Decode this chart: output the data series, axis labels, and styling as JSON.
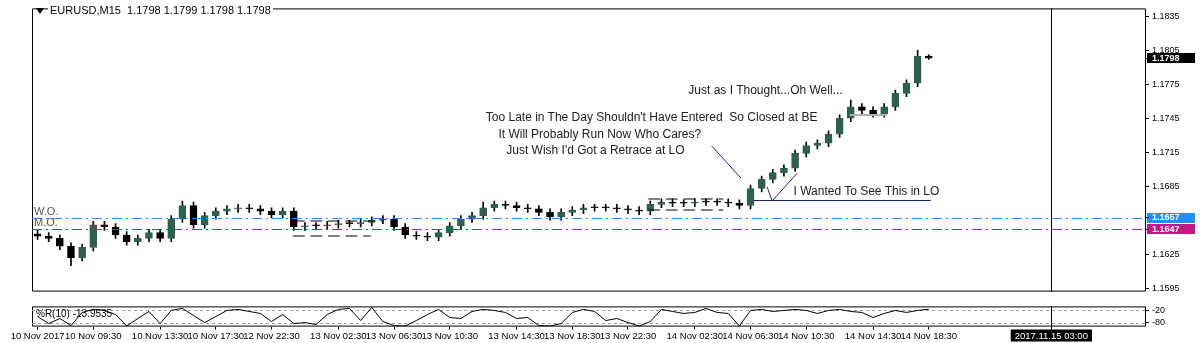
{
  "chart_data": [
    {
      "type": "candlestick",
      "title": "EURUSD,M15  1.1798 1.1799 1.1798 1.1798",
      "categories": [
        "10 Nov 2017",
        null,
        null,
        null,
        null,
        "10 Nov 09:30",
        null,
        null,
        null,
        null,
        null,
        "10 Nov 13:30",
        null,
        null,
        null,
        null,
        "10 Nov 17:30",
        null,
        null,
        null,
        null,
        "12 Nov 22:30",
        null,
        null,
        null,
        null,
        null,
        "13 Nov 02:30",
        null,
        null,
        null,
        null,
        "13 Nov 06:30",
        null,
        null,
        null,
        null,
        "13 Nov 10:30",
        null,
        null,
        null,
        null,
        null,
        "13 Nov 14:30",
        null,
        null,
        null,
        null,
        "13 Nov 18:30",
        null,
        null,
        null,
        null,
        "13 Nov 22:30",
        null,
        null,
        null,
        null,
        null,
        "14 Nov 02:30",
        null,
        null,
        null,
        null,
        "14 Nov 06:30",
        null,
        null,
        null,
        null,
        "14 Nov 10:30",
        null,
        null,
        null,
        null,
        null,
        "14 Nov 14:30",
        null,
        null,
        null,
        null,
        "14 Nov 18:30",
        null,
        null,
        null,
        null,
        null,
        null,
        null,
        null,
        null,
        null,
        "2017.11.15 03:00",
        null,
        null,
        null,
        null,
        null,
        null,
        null,
        null
      ],
      "ohlc": [
        [
          1.1643,
          1.1646,
          1.1638,
          1.1641
        ],
        [
          1.1641,
          1.1644,
          1.1636,
          1.1639
        ],
        [
          1.1639,
          1.1642,
          1.1629,
          1.1632
        ],
        [
          1.1632,
          1.1635,
          1.1615,
          1.1622
        ],
        [
          1.1622,
          1.1634,
          1.1619,
          1.1631
        ],
        [
          1.1631,
          1.1654,
          1.1628,
          1.1651
        ],
        [
          1.1651,
          1.1654,
          1.1646,
          1.1649
        ],
        [
          1.1649,
          1.1652,
          1.1639,
          1.1642
        ],
        [
          1.1642,
          1.1645,
          1.1633,
          1.1636
        ],
        [
          1.1636,
          1.1642,
          1.1633,
          1.1639
        ],
        [
          1.1639,
          1.1647,
          1.1636,
          1.1644
        ],
        [
          1.1644,
          1.1647,
          1.1636,
          1.1639
        ],
        [
          1.1639,
          1.1659,
          1.1636,
          1.1656
        ],
        [
          1.1656,
          1.1672,
          1.1653,
          1.1668
        ],
        [
          1.1668,
          1.1671,
          1.1648,
          1.1651
        ],
        [
          1.1651,
          1.1662,
          1.1648,
          1.1659
        ],
        [
          1.1659,
          1.1666,
          1.1656,
          1.1663
        ],
        [
          1.1663,
          1.1668,
          1.166,
          1.1665
        ],
        [
          1.1665,
          1.1669,
          1.1662,
          1.1666
        ],
        [
          1.1666,
          1.1669,
          1.1662,
          1.1665
        ],
        [
          1.1665,
          1.1668,
          1.166,
          1.1663
        ],
        [
          1.1663,
          1.1666,
          1.1657,
          1.166
        ],
        [
          1.166,
          1.1666,
          1.1657,
          1.1663
        ],
        [
          1.1663,
          1.1666,
          1.1646,
          1.1649
        ],
        [
          1.1649,
          1.1653,
          1.1646,
          1.165
        ],
        [
          1.165,
          1.1653,
          1.1647,
          1.165
        ],
        [
          1.165,
          1.1654,
          1.1647,
          1.1651
        ],
        [
          1.1651,
          1.1655,
          1.1648,
          1.1652
        ],
        [
          1.1652,
          1.1655,
          1.1649,
          1.1652
        ],
        [
          1.1652,
          1.1656,
          1.1649,
          1.1653
        ],
        [
          1.1653,
          1.1658,
          1.165,
          1.1655
        ],
        [
          1.1655,
          1.1659,
          1.1652,
          1.1656
        ],
        [
          1.1656,
          1.1659,
          1.1646,
          1.1649
        ],
        [
          1.1649,
          1.1652,
          1.1639,
          1.1642
        ],
        [
          1.1642,
          1.1645,
          1.1638,
          1.1641
        ],
        [
          1.1641,
          1.1644,
          1.1637,
          1.164
        ],
        [
          1.164,
          1.1647,
          1.1637,
          1.1644
        ],
        [
          1.1644,
          1.1653,
          1.1641,
          1.165
        ],
        [
          1.165,
          1.1659,
          1.1647,
          1.1656
        ],
        [
          1.1656,
          1.1662,
          1.1653,
          1.1659
        ],
        [
          1.1659,
          1.1671,
          1.1656,
          1.1666
        ],
        [
          1.1666,
          1.1672,
          1.1663,
          1.1669
        ],
        [
          1.1669,
          1.1672,
          1.1665,
          1.1668
        ],
        [
          1.1668,
          1.1671,
          1.1663,
          1.1666
        ],
        [
          1.1666,
          1.1669,
          1.1662,
          1.1665
        ],
        [
          1.1665,
          1.1668,
          1.1659,
          1.1662
        ],
        [
          1.1662,
          1.1665,
          1.1655,
          1.1658
        ],
        [
          1.1658,
          1.1665,
          1.1655,
          1.1662
        ],
        [
          1.1662,
          1.1667,
          1.1659,
          1.1664
        ],
        [
          1.1664,
          1.1669,
          1.1661,
          1.1666
        ],
        [
          1.1666,
          1.1669,
          1.1663,
          1.1666
        ],
        [
          1.1666,
          1.1669,
          1.1663,
          1.1666
        ],
        [
          1.1666,
          1.1669,
          1.1662,
          1.1665
        ],
        [
          1.1665,
          1.1668,
          1.1661,
          1.1664
        ],
        [
          1.1664,
          1.1667,
          1.166,
          1.1663
        ],
        [
          1.1663,
          1.1672,
          1.166,
          1.1669
        ],
        [
          1.1669,
          1.1674,
          1.1666,
          1.1671
        ],
        [
          1.1671,
          1.1674,
          1.1667,
          1.167
        ],
        [
          1.167,
          1.1673,
          1.1667,
          1.167
        ],
        [
          1.167,
          1.1674,
          1.1667,
          1.1671
        ],
        [
          1.1671,
          1.1674,
          1.1668,
          1.1671
        ],
        [
          1.1671,
          1.1674,
          1.1668,
          1.1671
        ],
        [
          1.1671,
          1.1674,
          1.1667,
          1.167
        ],
        [
          1.167,
          1.1673,
          1.1665,
          1.1668
        ],
        [
          1.1668,
          1.1686,
          1.1665,
          1.1683
        ],
        [
          1.1683,
          1.1694,
          1.168,
          1.1691
        ],
        [
          1.1691,
          1.17,
          1.1688,
          1.1697
        ],
        [
          1.1697,
          1.1704,
          1.1694,
          1.1701
        ],
        [
          1.1701,
          1.1717,
          1.1698,
          1.1714
        ],
        [
          1.1714,
          1.1724,
          1.1711,
          1.1721
        ],
        [
          1.1721,
          1.1726,
          1.1718,
          1.1723
        ],
        [
          1.1723,
          1.1734,
          1.172,
          1.1731
        ],
        [
          1.1731,
          1.1748,
          1.1728,
          1.1745
        ],
        [
          1.1745,
          1.1761,
          1.1742,
          1.1755
        ],
        [
          1.1755,
          1.1758,
          1.1749,
          1.1752
        ],
        [
          1.1752,
          1.1755,
          1.1746,
          1.1749
        ],
        [
          1.1749,
          1.1758,
          1.1746,
          1.1755
        ],
        [
          1.1755,
          1.177,
          1.1752,
          1.1767
        ],
        [
          1.1767,
          1.1779,
          1.1764,
          1.1776
        ],
        [
          1.1776,
          1.1805,
          1.1773,
          1.18
        ],
        [
          1.18,
          1.1801,
          1.1797,
          1.1798
        ],
        null,
        null,
        null,
        null,
        null,
        null,
        null,
        null,
        null,
        null,
        null,
        null,
        null,
        null,
        null,
        null,
        null,
        null,
        null
      ],
      "colors": [
        "#000000",
        "#000000",
        "#000000",
        "#000000",
        "#2f5f4f",
        "#2f5f4f",
        "#000000",
        "#000000",
        "#000000",
        "#2f5f4f",
        "#2f5f4f",
        "#000000",
        "#2f5f4f",
        "#2f5f4f",
        "#000000",
        "#2f5f4f",
        "#2f5f4f",
        "#2f5f4f",
        "#2f5f4f",
        "#000000",
        "#000000",
        "#000000",
        "#2f5f4f",
        "#000000",
        "#2f5f4f",
        "#000000",
        "#2f5f4f",
        "#2f5f4f",
        "#000000",
        "#2f5f4f",
        "#2f5f4f",
        "#2f5f4f",
        "#000000",
        "#000000",
        "#000000",
        "#000000",
        "#2f5f4f",
        "#2f5f4f",
        "#2f5f4f",
        "#2f5f4f",
        "#2f5f4f",
        "#2f5f4f",
        "#000000",
        "#000000",
        "#000000",
        "#000000",
        "#000000",
        "#2f5f4f",
        "#2f5f4f",
        "#2f5f4f",
        "#000000",
        "#000000",
        "#000000",
        "#000000",
        "#000000",
        "#2f5f4f",
        "#2f5f4f",
        "#000000",
        "#000000",
        "#2f5f4f",
        "#000000",
        "#000000",
        "#000000",
        "#000000",
        "#2f5f4f",
        "#2f5f4f",
        "#2f5f4f",
        "#2f5f4f",
        "#2f5f4f",
        "#2f5f4f",
        "#2f5f4f",
        "#2f5f4f",
        "#2f5f4f",
        "#2f5f4f",
        "#000000",
        "#000000",
        "#2f5f4f",
        "#2f5f4f",
        "#2f5f4f",
        "#2f5f4f",
        "#000000",
        null,
        null,
        null,
        null,
        null,
        null,
        null,
        null,
        null,
        null,
        null,
        null,
        null,
        null,
        null,
        null,
        null,
        null,
        null
      ],
      "ylim": [
        1.1592,
        1.1842
      ],
      "yticks": [
        1.1595,
        1.1625,
        1.1647,
        1.1657,
        1.1685,
        1.1715,
        1.1745,
        1.1775,
        {
          "value": 1.1798,
          "label": "1.1798"
        },
        1.1805,
        1.1835
      ],
      "tick_labels": "y",
      "ref_lines": [
        {
          "axis": "y",
          "value": 1.1657,
          "label": "W.O.",
          "color": "#1e90ff",
          "line_style": "dashed"
        },
        {
          "axis": "y",
          "value": 1.1647,
          "label": "M.O.",
          "color": "#c71585",
          "line_style": "dashed"
        },
        {
          "axis": "y",
          "value": 1.1673,
          "label": "I Wanted To See This in LO",
          "color": "#1a237e",
          "line_style": "solid"
        },
        {
          "axis": "x",
          "value": "2017.11.15 03:00",
          "label": null,
          "color": "#000000",
          "line_style": "solid"
        }
      ],
      "annotations": [
        "Just as I Thought...Oh Well...",
        "Too Late in The Day Shouldn't Have Entered  So Closed at BE",
        "It Will Probably Run Now Who Cares?",
        "Just Wish I'd Got a Retrace at LO"
      ]
    },
    {
      "type": "line",
      "title": "%R(10) -13.9535",
      "categories": [
        "10 Nov 2017",
        null,
        null,
        null,
        null,
        "10 Nov 09:30",
        null,
        null,
        null,
        null,
        null,
        "10 Nov 13:30",
        null,
        null,
        null,
        null,
        "10 Nov 17:30",
        null,
        null,
        null,
        null,
        "12 Nov 22:30",
        null,
        null,
        null,
        null,
        null,
        "13 Nov 02:30",
        null,
        null,
        null,
        null,
        "13 Nov 06:30",
        null,
        null,
        null,
        null,
        "13 Nov 10:30",
        null,
        null,
        null,
        null,
        null,
        "13 Nov 14:30",
        null,
        null,
        null,
        null,
        "13 Nov 18:30",
        null,
        null,
        null,
        null,
        "13 Nov 22:30",
        null,
        null,
        null,
        null,
        null,
        "14 Nov 02:30",
        null,
        null,
        null,
        null,
        "14 Nov 06:30",
        null,
        null,
        null,
        null,
        "14 Nov 10:30",
        null,
        null,
        null,
        null,
        null,
        "14 Nov 14:30",
        null,
        null,
        null,
        null,
        "14 Nov 18:30",
        null,
        null,
        null,
        null,
        null,
        null,
        null,
        null,
        null,
        null,
        "2017.11.15 03:00",
        null,
        null,
        null,
        null,
        null,
        null,
        null,
        null
      ],
      "values": [
        -50,
        -85,
        -60,
        -95,
        -30,
        -15,
        -20,
        -40,
        -97,
        -60,
        -25,
        -85,
        -20,
        -10,
        -45,
        -80,
        -50,
        -20,
        -15,
        -25,
        -35,
        -75,
        -40,
        -85,
        -80,
        -90,
        -40,
        -15,
        -10,
        -70,
        -5,
        -75,
        -95,
        -97,
        -70,
        -40,
        -15,
        -55,
        -60,
        -25,
        -15,
        -20,
        -30,
        -60,
        -55,
        -95,
        -97,
        -85,
        -30,
        -15,
        -25,
        -70,
        -60,
        -80,
        -97,
        -75,
        -15,
        -25,
        -35,
        -30,
        -10,
        -30,
        -35,
        -97,
        -20,
        -15,
        -25,
        -20,
        -15,
        -20,
        -35,
        -20,
        -15,
        -25,
        -30,
        -55,
        -35,
        -20,
        -30,
        -20,
        -14,
        null,
        null,
        null,
        null,
        null,
        null,
        null,
        null,
        null,
        null,
        null,
        null,
        null,
        null,
        null,
        null,
        null,
        null,
        null
      ],
      "color": "#000000",
      "ylim": [
        -100,
        0
      ],
      "yticks": [
        -20,
        -80
      ],
      "grid": "y",
      "ref_lines": [
        {
          "axis": "x",
          "value": "2017.11.15 03:00",
          "label": null,
          "color": "#000000",
          "line_style": "solid"
        }
      ]
    }
  ]
}
